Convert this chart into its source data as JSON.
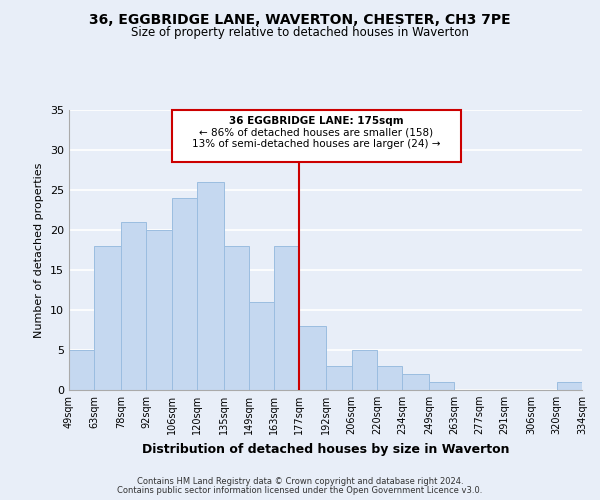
{
  "title": "36, EGGBRIDGE LANE, WAVERTON, CHESTER, CH3 7PE",
  "subtitle": "Size of property relative to detached houses in Waverton",
  "xlabel": "Distribution of detached houses by size in Waverton",
  "ylabel": "Number of detached properties",
  "footer_line1": "Contains HM Land Registry data © Crown copyright and database right 2024.",
  "footer_line2": "Contains public sector information licensed under the Open Government Licence v3.0.",
  "annotation_line1": "36 EGGBRIDGE LANE: 175sqm",
  "annotation_line2": "← 86% of detached houses are smaller (158)",
  "annotation_line3": "13% of semi-detached houses are larger (24) →",
  "bar_edges": [
    49,
    63,
    78,
    92,
    106,
    120,
    135,
    149,
    163,
    177,
    192,
    206,
    220,
    234,
    249,
    263,
    277,
    291,
    306,
    320,
    334
  ],
  "bar_heights": [
    5,
    18,
    21,
    20,
    24,
    26,
    18,
    11,
    18,
    8,
    3,
    5,
    3,
    2,
    1,
    0,
    0,
    0,
    0,
    1
  ],
  "tick_labels": [
    "49sqm",
    "63sqm",
    "78sqm",
    "92sqm",
    "106sqm",
    "120sqm",
    "135sqm",
    "149sqm",
    "163sqm",
    "177sqm",
    "192sqm",
    "206sqm",
    "220sqm",
    "234sqm",
    "249sqm",
    "263sqm",
    "277sqm",
    "291sqm",
    "306sqm",
    "320sqm",
    "334sqm"
  ],
  "bar_color": "#c5d8f0",
  "bar_edgecolor": "#9bbde0",
  "reference_line_x": 177,
  "reference_line_color": "#cc0000",
  "ylim": [
    0,
    35
  ],
  "yticks": [
    0,
    5,
    10,
    15,
    20,
    25,
    30,
    35
  ],
  "bg_color": "#e8eef8",
  "plot_bg_color": "#e8eef8",
  "grid_color": "#ffffff",
  "annotation_box_edgecolor": "#cc0000",
  "annotation_box_facecolor": "#ffffff",
  "title_fontsize": 10,
  "subtitle_fontsize": 8.5,
  "ylabel_fontsize": 8,
  "xlabel_fontsize": 9,
  "tick_fontsize": 7,
  "ytick_fontsize": 8,
  "footer_fontsize": 6
}
